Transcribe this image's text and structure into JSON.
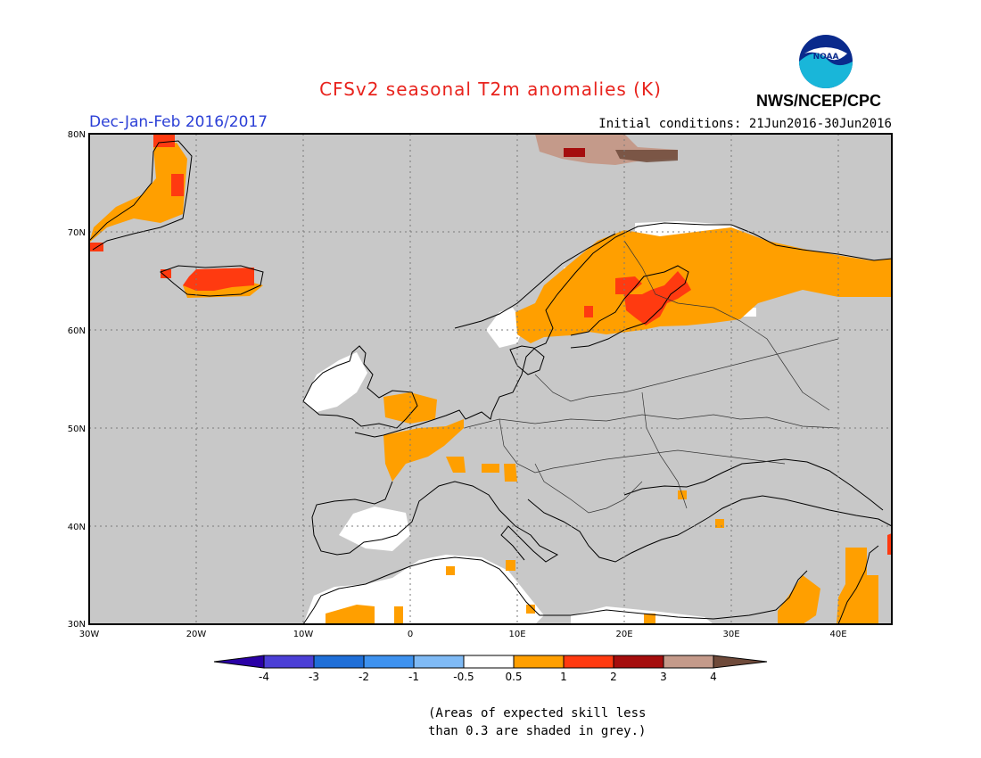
{
  "header": {
    "title": "CFSv2 seasonal T2m anomalies (K)",
    "title_color": "#e8231d",
    "org": "NWS/NCEP/CPC",
    "logo_text": "NOAA",
    "season": "Dec-Jan-Feb 2016/2017",
    "season_color": "#2b3fd6",
    "init_conditions": "Initial conditions: 21Jun2016-30Jun2016"
  },
  "map": {
    "projection": "lat-lon",
    "lon_range": [
      -30,
      45
    ],
    "lat_range": [
      30,
      80
    ],
    "lat_ticks": [
      "80N",
      "70N",
      "60N",
      "50N",
      "40N",
      "30N"
    ],
    "lon_ticks": [
      "30W",
      "20W",
      "10W",
      "0",
      "10E",
      "20E",
      "30E",
      "40E"
    ],
    "ocean_color": "#c8c8c8",
    "grid": "dotted"
  },
  "colorbar": {
    "labels": [
      "-4",
      "-3",
      "-2",
      "-1",
      "-0.5",
      "0.5",
      "1",
      "2",
      "3",
      "4"
    ],
    "colors": [
      "#2a00a6",
      "#4b3fd6",
      "#1f6fd8",
      "#3e92ef",
      "#7fbaf5",
      "#ffffff",
      "#ff9f00",
      "#ff3a10",
      "#a50d0d",
      "#c49a8a",
      "#6f4a3a"
    ]
  },
  "note": {
    "line1": "(Areas of expected skill less",
    "line2": "than 0.3 are shaded in grey.)"
  }
}
